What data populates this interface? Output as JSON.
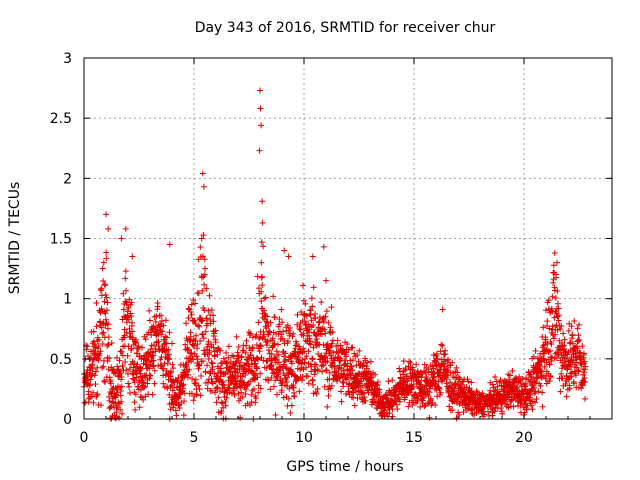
{
  "chart_data": {
    "type": "scatter",
    "title": "Day 343 of 2016, SRMTID for receiver chur",
    "xlabel": "GPS time / hours",
    "ylabel": "SRMTID / TECUs",
    "xlim": [
      0,
      24
    ],
    "ylim": [
      0,
      3
    ],
    "xticks": [
      0,
      5,
      10,
      15,
      20
    ],
    "yticks": [
      0,
      0.5,
      1,
      1.5,
      2,
      2.5,
      3
    ],
    "xtick_labels": [
      "0",
      "5",
      "10",
      "15",
      "20"
    ],
    "ytick_labels": [
      "0",
      "0.5",
      "1",
      "1.5",
      "2",
      "2.5",
      "3"
    ],
    "grid": true,
    "marker": "+",
    "color": "#e00000",
    "sampling_step_hours": 0.0083,
    "x_start": 0.0,
    "x_end": 22.8,
    "envelope": [
      [
        0.0,
        0.35,
        0.15
      ],
      [
        0.5,
        0.45,
        0.2
      ],
      [
        0.8,
        0.75,
        0.3
      ],
      [
        1.0,
        0.9,
        0.35
      ],
      [
        1.2,
        0.3,
        0.2
      ],
      [
        1.4,
        0.15,
        0.12
      ],
      [
        1.6,
        0.3,
        0.2
      ],
      [
        1.9,
        0.8,
        0.3
      ],
      [
        2.2,
        0.55,
        0.2
      ],
      [
        2.6,
        0.35,
        0.15
      ],
      [
        3.0,
        0.55,
        0.2
      ],
      [
        3.3,
        0.75,
        0.2
      ],
      [
        3.6,
        0.6,
        0.2
      ],
      [
        4.0,
        0.3,
        0.15
      ],
      [
        4.3,
        0.15,
        0.1
      ],
      [
        4.6,
        0.45,
        0.2
      ],
      [
        5.0,
        0.65,
        0.25
      ],
      [
        5.4,
        0.9,
        0.35
      ],
      [
        5.8,
        0.6,
        0.25
      ],
      [
        6.2,
        0.3,
        0.15
      ],
      [
        6.8,
        0.35,
        0.15
      ],
      [
        7.3,
        0.35,
        0.15
      ],
      [
        7.8,
        0.45,
        0.2
      ],
      [
        8.1,
        0.8,
        0.35
      ],
      [
        8.5,
        0.5,
        0.2
      ],
      [
        9.0,
        0.55,
        0.2
      ],
      [
        9.5,
        0.4,
        0.2
      ],
      [
        10.0,
        0.65,
        0.25
      ],
      [
        10.5,
        0.65,
        0.25
      ],
      [
        11.0,
        0.55,
        0.2
      ],
      [
        11.5,
        0.45,
        0.15
      ],
      [
        12.0,
        0.4,
        0.15
      ],
      [
        12.5,
        0.35,
        0.12
      ],
      [
        13.0,
        0.3,
        0.1
      ],
      [
        13.5,
        0.12,
        0.06
      ],
      [
        14.0,
        0.15,
        0.08
      ],
      [
        14.5,
        0.3,
        0.1
      ],
      [
        15.0,
        0.3,
        0.1
      ],
      [
        15.5,
        0.25,
        0.1
      ],
      [
        16.0,
        0.35,
        0.12
      ],
      [
        16.3,
        0.45,
        0.15
      ],
      [
        16.7,
        0.25,
        0.1
      ],
      [
        17.3,
        0.2,
        0.08
      ],
      [
        17.9,
        0.12,
        0.05
      ],
      [
        18.5,
        0.15,
        0.06
      ],
      [
        19.0,
        0.2,
        0.08
      ],
      [
        19.5,
        0.25,
        0.08
      ],
      [
        20.0,
        0.2,
        0.08
      ],
      [
        20.5,
        0.3,
        0.1
      ],
      [
        21.0,
        0.6,
        0.2
      ],
      [
        21.4,
        0.9,
        0.3
      ],
      [
        21.7,
        0.55,
        0.2
      ],
      [
        22.0,
        0.45,
        0.15
      ],
      [
        22.4,
        0.55,
        0.2
      ],
      [
        22.8,
        0.35,
        0.12
      ]
    ],
    "outliers": [
      [
        1.0,
        1.7
      ],
      [
        1.1,
        1.58
      ],
      [
        1.9,
        1.58
      ],
      [
        1.7,
        1.5
      ],
      [
        0.9,
        1.3
      ],
      [
        2.2,
        1.35
      ],
      [
        3.9,
        1.45
      ],
      [
        5.4,
        2.04
      ],
      [
        5.45,
        1.93
      ],
      [
        5.35,
        1.5
      ],
      [
        5.5,
        1.25
      ],
      [
        8.0,
        2.73
      ],
      [
        8.02,
        2.58
      ],
      [
        8.05,
        2.44
      ],
      [
        7.98,
        2.23
      ],
      [
        8.1,
        1.81
      ],
      [
        8.12,
        1.63
      ],
      [
        8.08,
        1.47
      ],
      [
        8.06,
        1.3
      ],
      [
        9.1,
        1.4
      ],
      [
        9.3,
        1.35
      ],
      [
        10.4,
        1.35
      ],
      [
        10.9,
        1.43
      ],
      [
        11.0,
        1.15
      ],
      [
        16.3,
        0.91
      ],
      [
        21.4,
        1.38
      ],
      [
        21.5,
        1.3
      ],
      [
        21.45,
        1.2
      ],
      [
        1.5,
        0.02
      ],
      [
        4.2,
        0.03
      ],
      [
        7.1,
        0.01
      ],
      [
        15.7,
        0.01
      ]
    ]
  }
}
